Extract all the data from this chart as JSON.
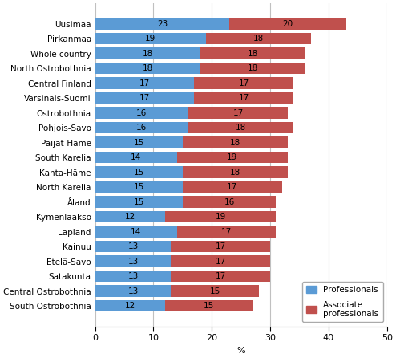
{
  "regions": [
    "Uusimaa",
    "Pirkanmaa",
    "Whole country",
    "North Ostrobothnia",
    "Central Finland",
    "Varsinais-Suomi",
    "Ostrobothnia",
    "Pohjois-Savo",
    "Päijät-Häme",
    "South Karelia",
    "Kanta-Häme",
    "North Karelia",
    "Åland",
    "Kymenlaakso",
    "Lapland",
    "Kainuu",
    "Etelä-Savo",
    "Satakunta",
    "Central Ostrobothnia",
    "South Ostrobothnia"
  ],
  "professionals": [
    23,
    19,
    18,
    18,
    17,
    17,
    16,
    16,
    15,
    14,
    15,
    15,
    15,
    12,
    14,
    13,
    13,
    13,
    13,
    12
  ],
  "associate_professionals": [
    20,
    18,
    18,
    18,
    17,
    17,
    17,
    18,
    18,
    19,
    18,
    17,
    16,
    19,
    17,
    17,
    17,
    17,
    15,
    15
  ],
  "prof_color": "#5B9BD5",
  "assoc_color": "#C0504D",
  "xlabel": "%",
  "xlim": [
    0,
    50
  ],
  "xticks": [
    0,
    10,
    20,
    30,
    40,
    50
  ],
  "legend_labels": [
    "Professionals",
    "Associate\nprofessionals"
  ],
  "bar_height": 0.78,
  "bg_color": "#FFFFFF",
  "grid_color": "#C0C0C0",
  "label_fontsize": 7.5,
  "tick_fontsize": 8.0,
  "value_fontsize": 7.5
}
